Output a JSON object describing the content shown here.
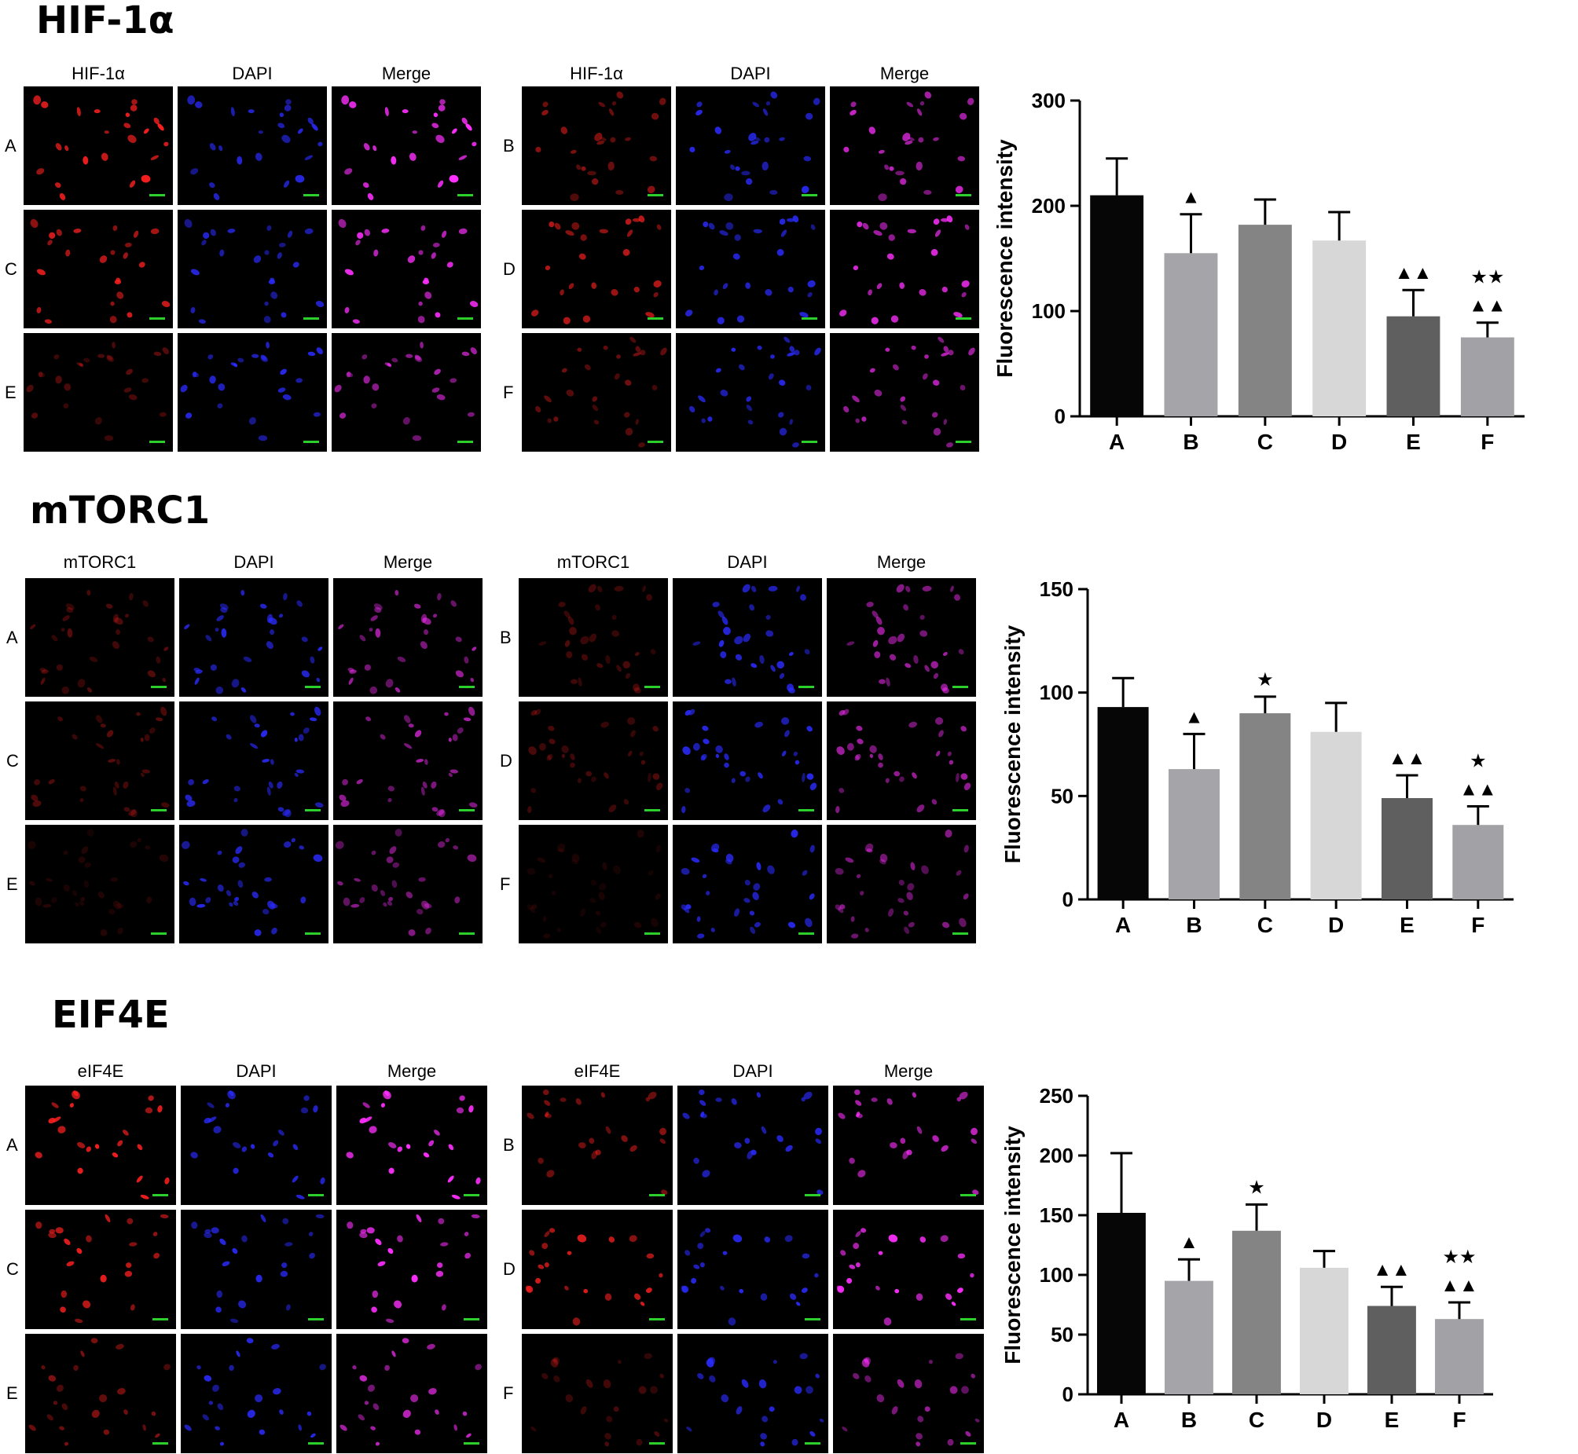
{
  "colors": {
    "bar_fills": [
      "#060606",
      "#a5a4a8",
      "#848484",
      "#d7d7d7",
      "#5f5f5f",
      "#a2a2a6"
    ],
    "red_channel": "#ff2020",
    "dapi_channel": "#2b2bff",
    "merge_channel": "#ff2fff",
    "scale_bar": "#2ccf2c"
  },
  "panels": [
    {
      "title": "HIF-1α",
      "column_headers": [
        "HIF-1α",
        "DAPI",
        "Merge"
      ],
      "left_rows": [
        "A",
        "C",
        "E"
      ],
      "right_rows": [
        "B",
        "D",
        "F"
      ],
      "row_intensity": {
        "A": 1.0,
        "B": 0.55,
        "C": 0.9,
        "D": 0.75,
        "E": 0.35,
        "F": 0.45
      },
      "chart_data": {
        "type": "bar",
        "categories": [
          "A",
          "B",
          "C",
          "D",
          "E",
          "F"
        ],
        "values": [
          210,
          155,
          182,
          167,
          95,
          75
        ],
        "errors": [
          35,
          37,
          24,
          27,
          25,
          14
        ],
        "annotations": [
          [],
          [
            "▲"
          ],
          [],
          [],
          [
            "▲▲"
          ],
          [
            "▲▲",
            "★★"
          ]
        ],
        "ylabel": "Fluorescence intensity",
        "ylim": [
          0,
          300
        ],
        "yticks": [
          0,
          100,
          200,
          300
        ]
      }
    },
    {
      "title": "mTORC1",
      "column_headers": [
        "mTORC1",
        "DAPI",
        "Merge"
      ],
      "left_rows": [
        "A",
        "C",
        "E"
      ],
      "right_rows": [
        "B",
        "D",
        "F"
      ],
      "row_intensity": {
        "A": 0.35,
        "B": 0.3,
        "C": 0.35,
        "D": 0.3,
        "E": 0.15,
        "F": 0.12
      },
      "chart_data": {
        "type": "bar",
        "categories": [
          "A",
          "B",
          "C",
          "D",
          "E",
          "F"
        ],
        "values": [
          93,
          63,
          90,
          81,
          49,
          36
        ],
        "errors": [
          14,
          17,
          8,
          14,
          11,
          9
        ],
        "annotations": [
          [],
          [
            "▲"
          ],
          [
            "★"
          ],
          [],
          [
            "▲▲"
          ],
          [
            "▲▲",
            "★"
          ]
        ],
        "ylabel": "Fluorescence intensity",
        "ylim": [
          0,
          150
        ],
        "yticks": [
          0,
          50,
          100,
          150
        ]
      }
    },
    {
      "title": "EIF4E",
      "column_headers_left": [
        "eIF4E",
        "DAPI",
        "Merge"
      ],
      "column_headers_right": [
        "eIF4E",
        "DAPI",
        "Merge"
      ],
      "left_rows": [
        "A",
        "C",
        "E"
      ],
      "right_rows": [
        "B",
        "D",
        "F"
      ],
      "row_intensity": {
        "A": 1.0,
        "B": 0.55,
        "C": 0.9,
        "D": 0.85,
        "E": 0.5,
        "F": 0.3
      },
      "chart_data": {
        "type": "bar",
        "categories": [
          "A",
          "B",
          "C",
          "D",
          "E",
          "F"
        ],
        "values": [
          152,
          95,
          137,
          106,
          74,
          63
        ],
        "errors": [
          50,
          18,
          22,
          14,
          16,
          14
        ],
        "annotations": [
          [],
          [
            "▲"
          ],
          [
            "★"
          ],
          [],
          [
            "▲▲"
          ],
          [
            "▲▲",
            "★★"
          ]
        ],
        "ylabel": "Fluorescence intensity",
        "ylim": [
          0,
          250
        ],
        "yticks": [
          0,
          50,
          100,
          150,
          200,
          250
        ]
      }
    }
  ]
}
